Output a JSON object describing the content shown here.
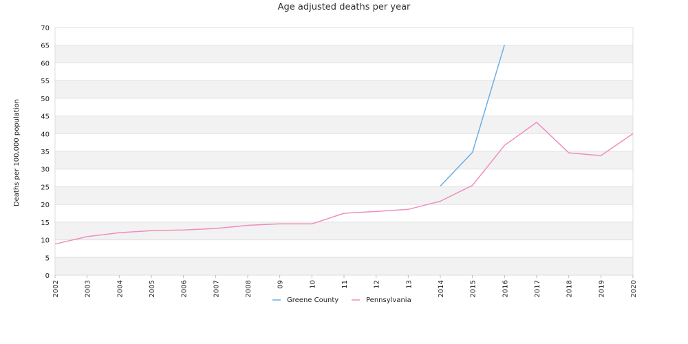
{
  "chart_data": {
    "type": "line",
    "title": "Age adjusted deaths per year",
    "xlabel": "",
    "ylabel": "Deaths per 100,000 population",
    "x": [
      "2002",
      "2003",
      "2004",
      "2005",
      "2006",
      "2007",
      "2008",
      "09",
      "10",
      "11",
      "12",
      "13",
      "2014",
      "2015",
      "2016",
      "2017",
      "2018",
      "2019",
      "2020"
    ],
    "ylim": [
      0,
      70
    ],
    "yticks": [
      0,
      5,
      10,
      15,
      20,
      25,
      30,
      35,
      40,
      45,
      50,
      55,
      60,
      65,
      70
    ],
    "grid": "banded horizontal",
    "legend_position": "bottom-center",
    "series": [
      {
        "name": "Greene County",
        "color": "#6aaee8",
        "values": [
          null,
          null,
          null,
          null,
          null,
          null,
          null,
          null,
          null,
          null,
          null,
          null,
          25.2,
          34.7,
          65.1,
          null,
          null,
          null,
          null
        ]
      },
      {
        "name": "Pennsylvania",
        "color": "#ef8dbd",
        "values": [
          8.8,
          10.9,
          12.0,
          12.6,
          12.8,
          13.2,
          14.1,
          14.5,
          14.5,
          17.5,
          18.0,
          18.6,
          20.9,
          25.4,
          36.7,
          43.2,
          34.6,
          33.8,
          40.0
        ]
      }
    ]
  }
}
